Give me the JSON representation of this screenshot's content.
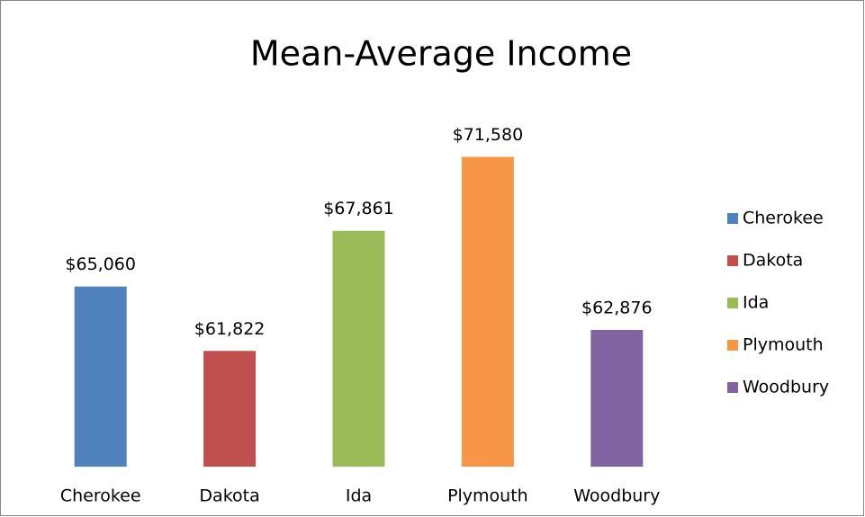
{
  "chart_data": {
    "type": "bar",
    "title": "Mean-Average Income",
    "categories": [
      "Cherokee",
      "Dakota",
      "Ida",
      "Plymouth",
      "Woodbury"
    ],
    "values": [
      65060,
      61822,
      67861,
      71580,
      62876
    ],
    "value_labels": [
      "$65,060",
      "$61,822",
      "$67,861",
      "$71,580",
      "$62,876"
    ],
    "colors": [
      "#4f81bd",
      "#c0504d",
      "#9bbb59",
      "#f79646",
      "#8064a2"
    ],
    "ylim": [
      56000,
      74000
    ],
    "legend": "right"
  }
}
